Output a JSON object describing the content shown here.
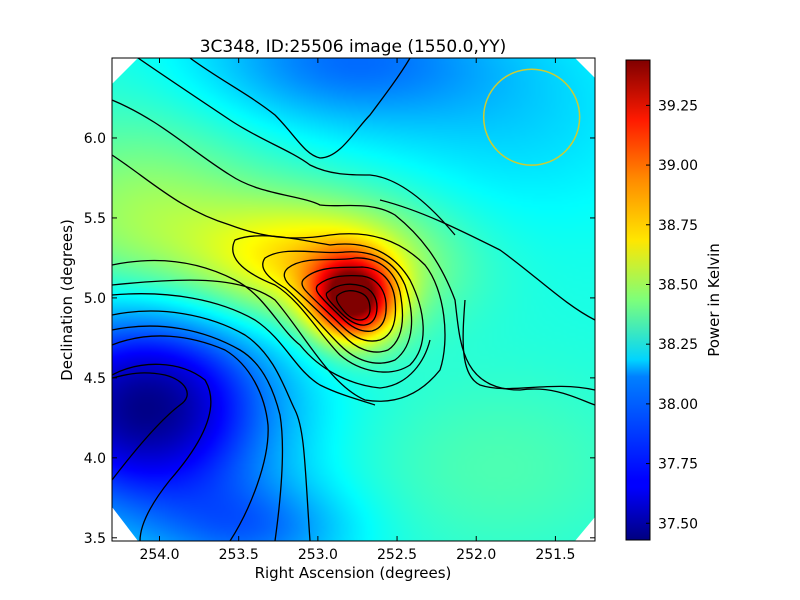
{
  "chart_data": {
    "type": "heatmap",
    "title": "3C348, ID:25506 image (1550.0,YY)",
    "xlabel": "Right Ascension (degrees)",
    "ylabel": "Declination (degrees)",
    "xlim": [
      254.3,
      251.25
    ],
    "ylim": [
      3.48,
      6.5
    ],
    "x_ticks": [
      254.0,
      253.5,
      253.0,
      252.5,
      252.0,
      251.5
    ],
    "x_tick_labels": [
      "254.0",
      "253.5",
      "253.0",
      "252.5",
      "252.0",
      "251.5"
    ],
    "y_ticks": [
      3.5,
      4.0,
      4.5,
      5.0,
      5.5,
      6.0
    ],
    "y_tick_labels": [
      "3.5",
      "4.0",
      "4.5",
      "5.0",
      "5.5",
      "6.0"
    ],
    "colorbar": {
      "label": "Power in Kelvin",
      "colormap": "jet",
      "range": [
        37.43,
        39.44
      ],
      "ticks": [
        37.5,
        37.75,
        38.0,
        38.25,
        38.5,
        38.75,
        39.0,
        39.25
      ],
      "tick_labels": [
        "37.50",
        "37.75",
        "38.00",
        "38.25",
        "38.50",
        "38.75",
        "39.00",
        "39.25"
      ]
    },
    "features": [
      {
        "kind": "peak",
        "ra": 252.78,
        "dec": 4.97,
        "value": 39.44
      },
      {
        "kind": "minimum",
        "ra": 254.2,
        "dec": 4.2,
        "value": 37.43
      }
    ],
    "beam_circle": {
      "ra": 251.65,
      "dec": 6.13,
      "radius_deg": 0.3,
      "color": "#cccc33"
    },
    "grid": false,
    "contour_color": "#000000"
  }
}
